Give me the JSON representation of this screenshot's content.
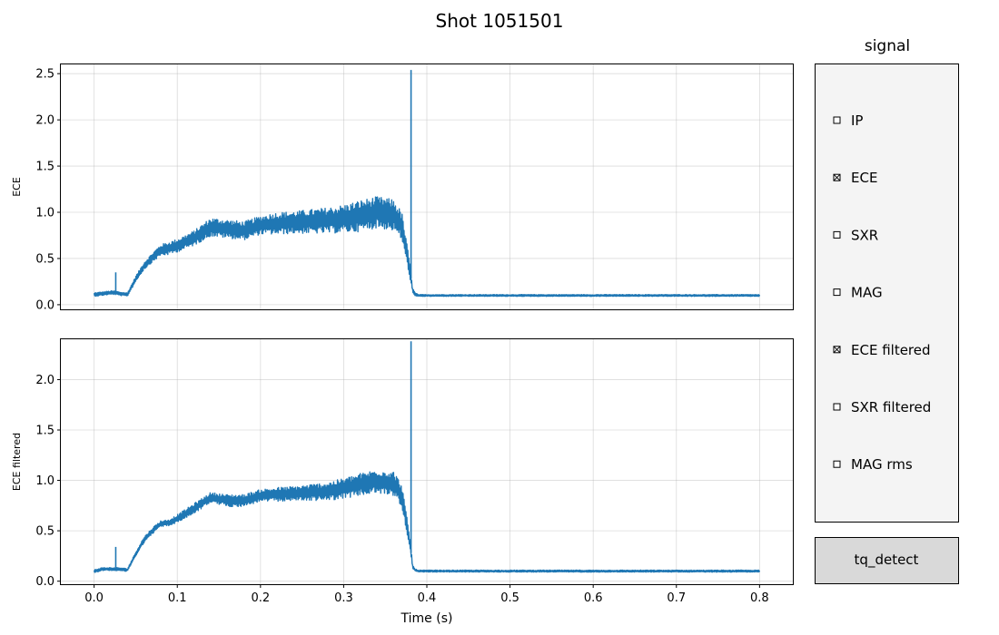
{
  "title": "Shot 1051501",
  "chart_data": [
    {
      "type": "line",
      "ylabel": "ECE",
      "xlabel": "",
      "xlim": [
        -0.04,
        0.84
      ],
      "ylim": [
        -0.05,
        2.6
      ],
      "yticks": [
        0.0,
        0.5,
        1.0,
        1.5,
        2.0,
        2.5
      ],
      "ytick_labels": [
        "0.0",
        "0.5",
        "1.0",
        "1.5",
        "2.0",
        "2.5"
      ],
      "grid": true,
      "color": "#1f77b4",
      "series": [
        {
          "x": [
            0.0,
            0.01,
            0.02,
            0.025,
            0.03,
            0.04,
            0.05,
            0.06,
            0.07,
            0.08,
            0.09,
            0.1,
            0.12,
            0.14,
            0.16,
            0.18,
            0.2,
            0.22,
            0.24,
            0.26,
            0.28,
            0.3,
            0.32,
            0.34,
            0.36,
            0.37,
            0.375,
            0.38,
            0.383,
            0.386,
            0.39,
            0.4,
            0.5,
            0.6,
            0.7,
            0.8
          ],
          "y": [
            0.11,
            0.12,
            0.13,
            0.13,
            0.12,
            0.11,
            0.28,
            0.42,
            0.51,
            0.59,
            0.61,
            0.64,
            0.72,
            0.84,
            0.82,
            0.8,
            0.86,
            0.88,
            0.89,
            0.9,
            0.91,
            0.93,
            0.96,
            1.0,
            0.97,
            0.85,
            0.6,
            0.35,
            0.15,
            0.11,
            0.1,
            0.1,
            0.1,
            0.1,
            0.1,
            0.1
          ],
          "band": [
            0.02,
            0.02,
            0.02,
            0.02,
            0.02,
            0.02,
            0.03,
            0.04,
            0.05,
            0.06,
            0.07,
            0.07,
            0.08,
            0.1,
            0.1,
            0.1,
            0.1,
            0.12,
            0.12,
            0.13,
            0.14,
            0.15,
            0.17,
            0.17,
            0.17,
            0.15,
            0.12,
            0.08,
            0.03,
            0.02,
            0.01,
            0.01,
            0.01,
            0.01,
            0.01,
            0.01
          ]
        }
      ],
      "spikes": [
        {
          "x": 0.026,
          "y": 0.35
        },
        {
          "x": 0.381,
          "y": 2.54
        }
      ]
    },
    {
      "type": "line",
      "ylabel": "ECE filtered",
      "xlabel": "Time (s)",
      "xlim": [
        -0.04,
        0.84
      ],
      "ylim": [
        -0.03,
        2.4
      ],
      "xticks": [
        0.0,
        0.1,
        0.2,
        0.3,
        0.4,
        0.5,
        0.6,
        0.7,
        0.8
      ],
      "xtick_labels": [
        "0.0",
        "0.1",
        "0.2",
        "0.3",
        "0.4",
        "0.5",
        "0.6",
        "0.7",
        "0.8"
      ],
      "yticks": [
        0.0,
        0.5,
        1.0,
        1.5,
        2.0
      ],
      "ytick_labels": [
        "0.0",
        "0.5",
        "1.0",
        "1.5",
        "2.0"
      ],
      "grid": true,
      "color": "#1f77b4",
      "series": [
        {
          "x": [
            0.0,
            0.01,
            0.02,
            0.025,
            0.03,
            0.04,
            0.05,
            0.06,
            0.07,
            0.08,
            0.09,
            0.1,
            0.12,
            0.14,
            0.16,
            0.18,
            0.2,
            0.22,
            0.24,
            0.26,
            0.28,
            0.3,
            0.32,
            0.34,
            0.36,
            0.37,
            0.375,
            0.38,
            0.383,
            0.386,
            0.39,
            0.4,
            0.5,
            0.6,
            0.7,
            0.8
          ],
          "y": [
            0.1,
            0.12,
            0.12,
            0.12,
            0.12,
            0.11,
            0.27,
            0.41,
            0.5,
            0.57,
            0.58,
            0.62,
            0.72,
            0.83,
            0.8,
            0.8,
            0.85,
            0.86,
            0.87,
            0.88,
            0.89,
            0.92,
            0.96,
            0.99,
            0.97,
            0.85,
            0.6,
            0.35,
            0.14,
            0.11,
            0.1,
            0.1,
            0.1,
            0.1,
            0.1,
            0.1
          ],
          "band": [
            0.015,
            0.015,
            0.015,
            0.015,
            0.015,
            0.015,
            0.02,
            0.03,
            0.03,
            0.03,
            0.03,
            0.04,
            0.05,
            0.05,
            0.06,
            0.06,
            0.06,
            0.07,
            0.07,
            0.08,
            0.09,
            0.1,
            0.11,
            0.12,
            0.12,
            0.11,
            0.09,
            0.06,
            0.02,
            0.01,
            0.01,
            0.01,
            0.01,
            0.01,
            0.01,
            0.01
          ]
        }
      ],
      "spikes": [
        {
          "x": 0.026,
          "y": 0.34
        },
        {
          "x": 0.381,
          "y": 2.38
        }
      ]
    }
  ],
  "controls": {
    "panel_title": "signal",
    "checkboxes": [
      {
        "label": "IP",
        "checked": false
      },
      {
        "label": "ECE",
        "checked": true
      },
      {
        "label": "SXR",
        "checked": false
      },
      {
        "label": "MAG",
        "checked": false
      },
      {
        "label": "ECE filtered",
        "checked": true
      },
      {
        "label": "SXR filtered",
        "checked": false
      },
      {
        "label": "MAG rms",
        "checked": false
      }
    ],
    "button_label": "tq_detect",
    "panel_bg": "#f4f4f4",
    "button_bg": "#d9d9d9"
  }
}
